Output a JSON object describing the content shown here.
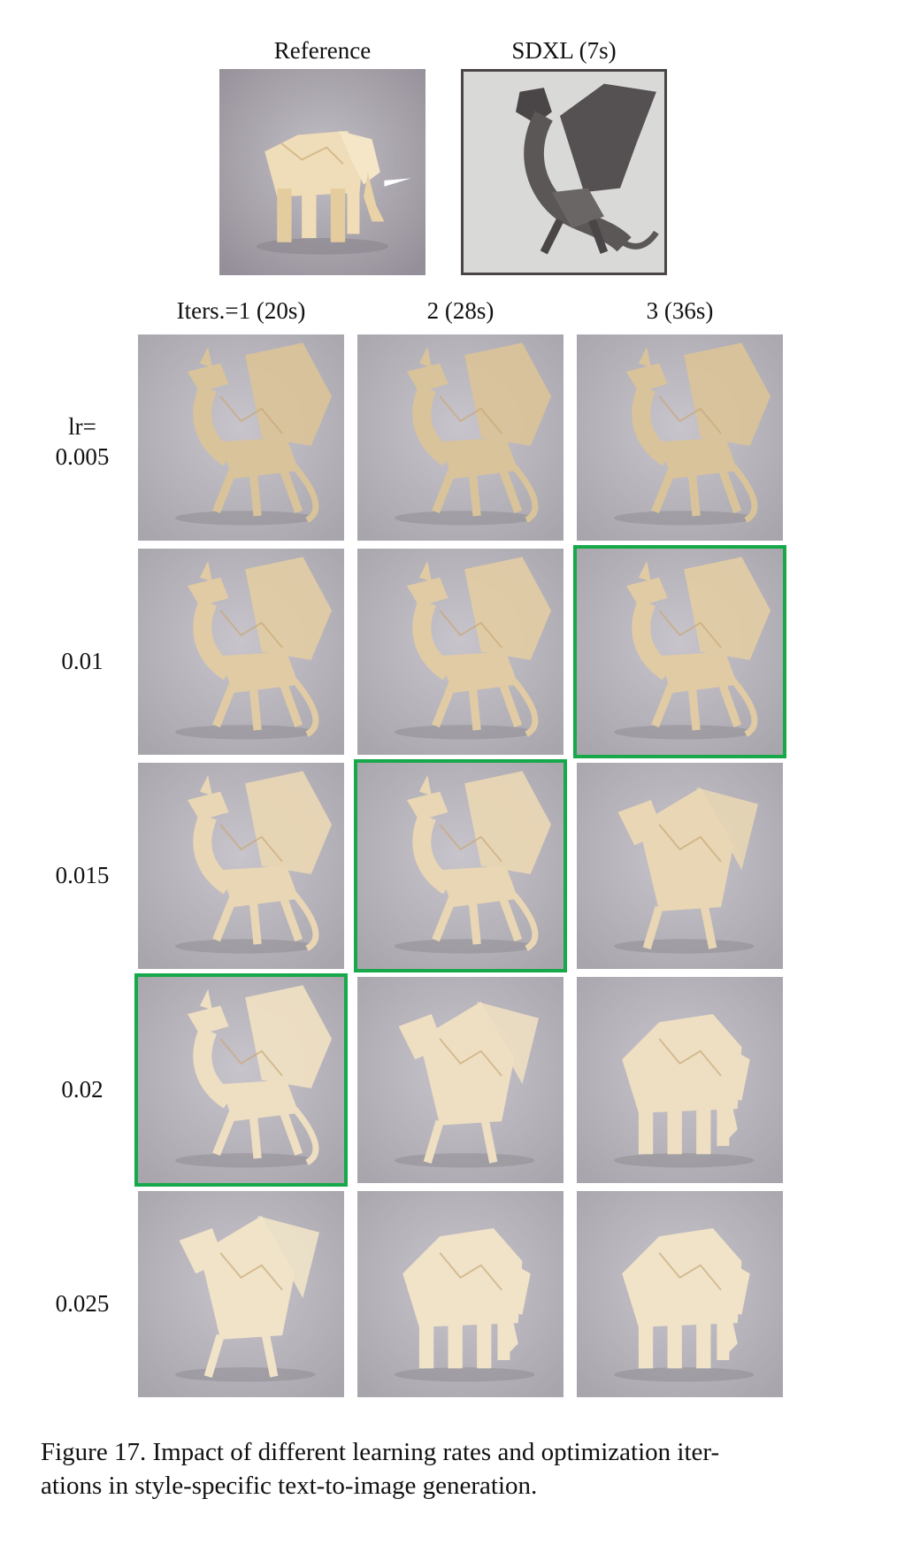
{
  "top": {
    "reference_label": "Reference",
    "sdxl_label": "SDXL  (7s)"
  },
  "columns": [
    "Iters.=1 (20s)",
    "2 (28s)",
    "3 (36s)"
  ],
  "rows": [
    {
      "label_line1": "lr=",
      "label_line2": "0.005"
    },
    {
      "label_line1": "",
      "label_line2": "0.01"
    },
    {
      "label_line1": "",
      "label_line2": "0.015"
    },
    {
      "label_line1": "",
      "label_line2": "0.02"
    },
    {
      "label_line1": "",
      "label_line2": "0.025"
    }
  ],
  "selected_cells": [
    {
      "row": 1,
      "col": 2
    },
    {
      "row": 2,
      "col": 1
    },
    {
      "row": 3,
      "col": 0
    }
  ],
  "colors": {
    "highlight": "#17a84a",
    "tile_bg": "#a9a5ad",
    "paper": "#e8d6b4"
  },
  "caption": "Figure 17. Impact of different learning rates and optimization iter- ations in style-specific text-to-image generation.",
  "caption_line1": "Figure 17. Impact of different learning rates and optimization iter-",
  "caption_line2": "ations in style-specific text-to-image generation."
}
